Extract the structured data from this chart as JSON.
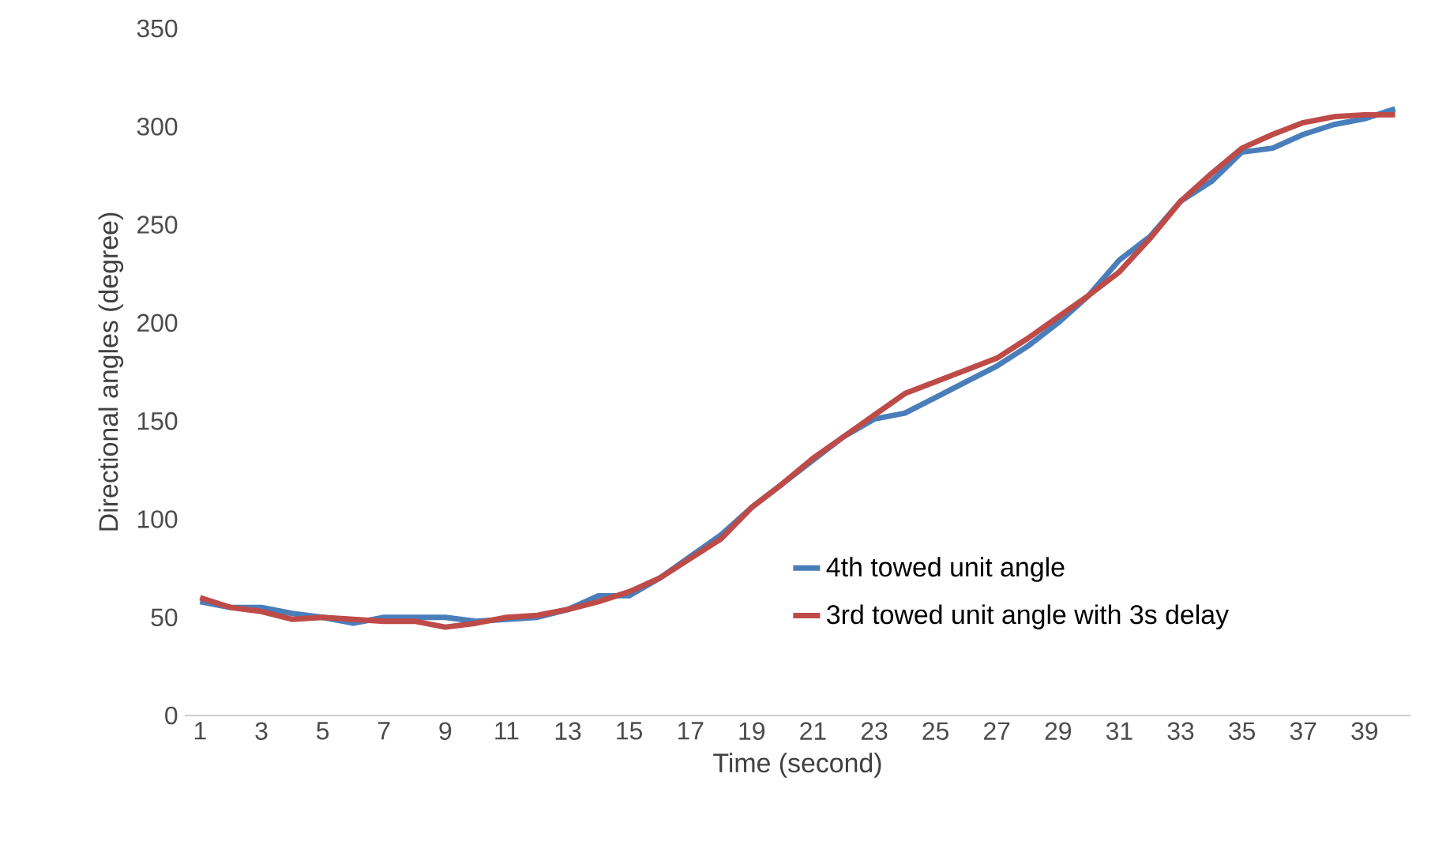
{
  "chart_data": {
    "type": "line",
    "xlabel": "Time (second)",
    "ylabel": "Directional angles (degree)",
    "categories": [
      "1",
      null,
      "3",
      null,
      "5",
      null,
      "7",
      null,
      "9",
      null,
      "11",
      null,
      "13",
      null,
      "15",
      null,
      "17",
      null,
      "19",
      null,
      "21",
      null,
      "23",
      null,
      "25",
      null,
      "27",
      null,
      "29",
      null,
      "31",
      null,
      "33",
      null,
      "35",
      null,
      "37",
      null,
      "39",
      null
    ],
    "series": [
      {
        "name": "4th towed unit angle",
        "color": "#4a7ebb",
        "values": [
          58,
          55,
          55,
          52,
          50,
          47,
          50,
          50,
          50,
          48,
          49,
          50,
          54,
          61,
          61,
          70,
          81,
          92,
          106,
          118,
          130,
          142,
          151,
          154,
          162,
          170,
          178,
          188,
          200,
          214,
          232,
          244,
          262,
          272,
          287,
          289,
          296,
          301,
          304,
          309
        ]
      },
      {
        "name": "3rd towed unit angle with 3s delay",
        "color": "#be4b48",
        "values": [
          60,
          55,
          53,
          49,
          50,
          49,
          48,
          48,
          45,
          47,
          50,
          51,
          54,
          58,
          63,
          70,
          80,
          90,
          106,
          118,
          131,
          142,
          153,
          164,
          170,
          176,
          182,
          192,
          203,
          214,
          226,
          243,
          262,
          276,
          289,
          296,
          302,
          305,
          306,
          306
        ]
      }
    ],
    "ylim": [
      0,
      350
    ],
    "yticks": [
      0,
      50,
      100,
      150,
      200,
      250,
      300,
      350
    ],
    "legend": "bottom right",
    "grid": false,
    "marker": "none",
    "line_style": "solid"
  }
}
